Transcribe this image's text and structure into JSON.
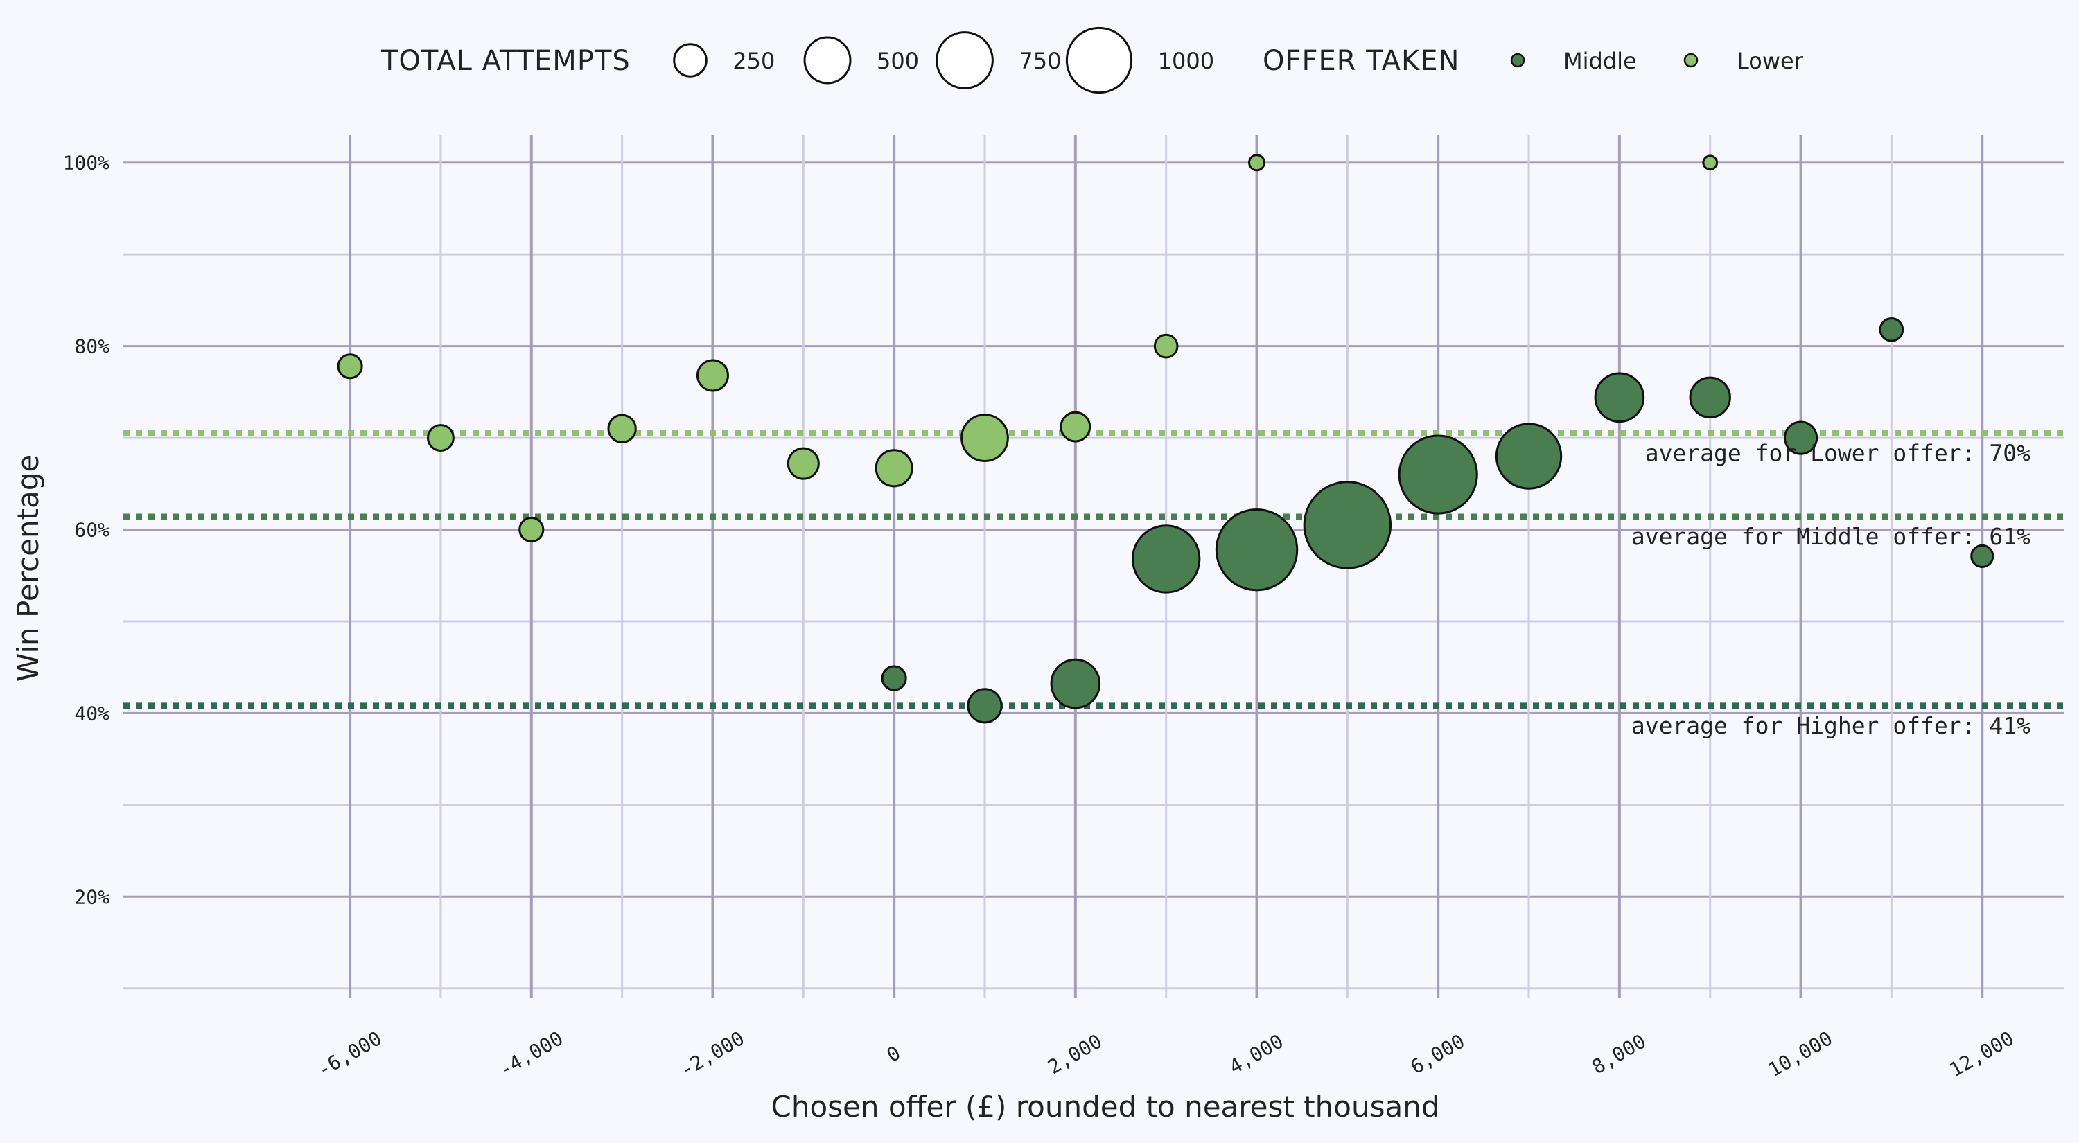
{
  "chart_data": {
    "type": "scatter",
    "xlabel": "Chosen offer (£) rounded to nearest thousand",
    "ylabel": "Win Percentage",
    "xlim": [
      -8500,
      12900
    ],
    "ylim": [
      9,
      103
    ],
    "x_ticks": [
      -6000,
      -4000,
      -2000,
      0,
      2000,
      4000,
      6000,
      8000,
      10000,
      12000
    ],
    "x_tick_labels": [
      "-6,000",
      "-4,000",
      "-2,000",
      "0",
      "2,000",
      "4,000",
      "6,000",
      "8,000",
      "10,000",
      "12,000"
    ],
    "y_ticks": [
      20,
      40,
      60,
      80,
      100
    ],
    "y_tick_labels": [
      "20%",
      "40%",
      "60%",
      "80%",
      "100%"
    ],
    "grid": true,
    "legend": {
      "placement": "top",
      "size_title": "TOTAL ATTEMPTS",
      "size_entries": [
        {
          "label": "250",
          "value": 250
        },
        {
          "label": "500",
          "value": 500
        },
        {
          "label": "750",
          "value": 750
        },
        {
          "label": "1000",
          "value": 1000
        }
      ],
      "color_title": "OFFER TAKEN",
      "color_entries": [
        {
          "label": "Middle",
          "color": "#4a7d4f"
        },
        {
          "label": "Lower",
          "color": "#8ec26d"
        }
      ]
    },
    "colors": {
      "Middle": "#4a7d4f",
      "Lower": "#8ec26d",
      "Higher": "#2e6a4f",
      "background": "#f7f8fe",
      "grid_major": "#a69dbb",
      "grid_minor": "#d0cde0"
    },
    "series": [
      {
        "name": "Lower",
        "points": [
          {
            "x": -6000,
            "y": 77.8,
            "attempts": 60
          },
          {
            "x": -5000,
            "y": 70.0,
            "attempts": 70
          },
          {
            "x": -4000,
            "y": 60.0,
            "attempts": 60
          },
          {
            "x": -3000,
            "y": 71.0,
            "attempts": 80
          },
          {
            "x": -2000,
            "y": 76.8,
            "attempts": 100
          },
          {
            "x": -1000,
            "y": 67.2,
            "attempts": 100
          },
          {
            "x": 0,
            "y": 66.7,
            "attempts": 140
          },
          {
            "x": 1000,
            "y": 70.0,
            "attempts": 230
          },
          {
            "x": 2000,
            "y": 71.2,
            "attempts": 90
          },
          {
            "x": 3000,
            "y": 80.0,
            "attempts": 55
          },
          {
            "x": 4000,
            "y": 100.0,
            "attempts": 25
          },
          {
            "x": 9000,
            "y": 100.0,
            "attempts": 20
          }
        ]
      },
      {
        "name": "Middle",
        "points": [
          {
            "x": 0,
            "y": 43.8,
            "attempts": 60
          },
          {
            "x": 1000,
            "y": 40.8,
            "attempts": 120
          },
          {
            "x": 2000,
            "y": 43.2,
            "attempts": 250
          },
          {
            "x": 3000,
            "y": 56.8,
            "attempts": 480
          },
          {
            "x": 4000,
            "y": 57.8,
            "attempts": 700
          },
          {
            "x": 5000,
            "y": 60.5,
            "attempts": 800
          },
          {
            "x": 6000,
            "y": 66.0,
            "attempts": 650
          },
          {
            "x": 7000,
            "y": 68.0,
            "attempts": 450
          },
          {
            "x": 8000,
            "y": 74.4,
            "attempts": 250
          },
          {
            "x": 9000,
            "y": 74.4,
            "attempts": 170
          },
          {
            "x": 10000,
            "y": 70.0,
            "attempts": 110
          },
          {
            "x": 11000,
            "y": 81.8,
            "attempts": 55
          },
          {
            "x": 12000,
            "y": 57.1,
            "attempts": 50
          }
        ]
      }
    ],
    "reference_lines": [
      {
        "y": 70.5,
        "color": "#8ec26d",
        "label": "average for Lower offer: 70%"
      },
      {
        "y": 61.4,
        "color": "#4a7d4f",
        "label": "average for Middle offer: 61%"
      },
      {
        "y": 40.8,
        "color": "#2e6a4f",
        "label": "average for Higher offer: 41%"
      }
    ]
  }
}
